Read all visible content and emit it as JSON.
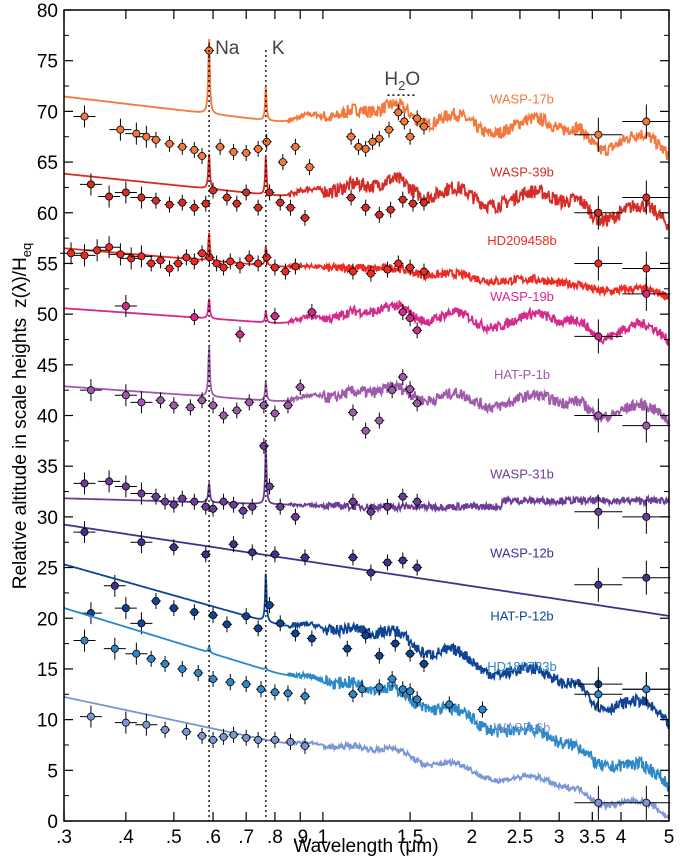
{
  "chart_data": {
    "type": "line",
    "xlabel": "Wavelength",
    "xunit": "(μm)",
    "ylabel": "Relative altitude in scale heights",
    "ylabel_math": "z(λ)/H",
    "ylabel_sub": "eq",
    "xscale": "log",
    "xlim": [
      0.3,
      5.0
    ],
    "ylim": [
      0,
      80
    ],
    "xticks": [
      {
        "v": 0.3,
        "label": ".3"
      },
      {
        "v": 0.4,
        "label": ".4"
      },
      {
        "v": 0.5,
        "label": ".5"
      },
      {
        "v": 0.6,
        "label": ".6"
      },
      {
        "v": 0.7,
        "label": ".7"
      },
      {
        "v": 0.8,
        "label": ".8"
      },
      {
        "v": 0.9,
        "label": ".9"
      },
      {
        "v": 1.0,
        "label": "1"
      },
      {
        "v": 1.5,
        "label": "1.5"
      },
      {
        "v": 2.0,
        "label": "2"
      },
      {
        "v": 2.5,
        "label": "2.5"
      },
      {
        "v": 3.0,
        "label": "3"
      },
      {
        "v": 3.5,
        "label": "3.5"
      },
      {
        "v": 4.0,
        "label": "4"
      },
      {
        "v": 5.0,
        "label": "5"
      }
    ],
    "yticks": [
      0,
      5,
      10,
      15,
      20,
      25,
      30,
      35,
      40,
      45,
      50,
      55,
      60,
      65,
      70,
      75,
      80
    ],
    "features": [
      {
        "label": "Na",
        "x": 0.589
      },
      {
        "label": "K",
        "x": 0.767
      }
    ],
    "water_label": {
      "main": "H",
      "sub": "2",
      "rest": "O",
      "x_from": 1.35,
      "x_to": 1.55,
      "y": 71.6
    },
    "series": [
      {
        "name": "WASP-17b",
        "color": "#f4773c",
        "base": 68.0,
        "slope": -2.5,
        "amp": 3.0,
        "noise": 0.9,
        "cut": false,
        "na": 7.5,
        "k": 3.5,
        "xmax": 5.0,
        "points": [
          [
            0.33,
            69.5
          ],
          [
            0.39,
            68.2
          ],
          [
            0.42,
            67.8
          ],
          [
            0.44,
            67.5
          ],
          [
            0.46,
            67.2
          ],
          [
            0.49,
            66.8
          ],
          [
            0.52,
            66.5
          ],
          [
            0.55,
            66.2
          ],
          [
            0.57,
            65.6
          ],
          [
            0.589,
            76.0
          ],
          [
            0.62,
            66.5
          ],
          [
            0.66,
            66.0
          ],
          [
            0.7,
            65.9
          ],
          [
            0.74,
            66.3
          ],
          [
            0.77,
            67.0
          ],
          [
            0.83,
            65.0
          ],
          [
            0.88,
            66.5
          ],
          [
            0.94,
            64.5
          ],
          [
            1.14,
            67.5
          ],
          [
            1.18,
            66.5
          ],
          [
            1.22,
            66.3
          ],
          [
            1.26,
            67.0
          ],
          [
            1.3,
            67.3
          ],
          [
            1.36,
            68.2
          ],
          [
            1.42,
            69.9
          ],
          [
            1.46,
            69.0
          ],
          [
            1.5,
            67.5
          ],
          [
            1.55,
            69.3
          ],
          [
            1.6,
            68.5
          ],
          [
            3.6,
            67.7
          ],
          [
            4.5,
            69.0
          ]
        ]
      },
      {
        "name": "WASP-39b",
        "color": "#d42d27",
        "base": 60.8,
        "slope": -2.2,
        "amp": 2.8,
        "noise": 1.0,
        "cut": false,
        "na": 3.5,
        "k": 4.0,
        "xmax": 5.0,
        "points": [
          [
            0.34,
            62.8
          ],
          [
            0.37,
            61.6
          ],
          [
            0.4,
            62.0
          ],
          [
            0.43,
            61.5
          ],
          [
            0.46,
            61.2
          ],
          [
            0.49,
            60.8
          ],
          [
            0.52,
            61.0
          ],
          [
            0.55,
            60.5
          ],
          [
            0.58,
            60.9
          ],
          [
            0.6,
            62.2
          ],
          [
            0.64,
            61.5
          ],
          [
            0.67,
            60.9
          ],
          [
            0.7,
            62.0
          ],
          [
            0.74,
            60.5
          ],
          [
            0.78,
            62.0
          ],
          [
            0.82,
            61.0
          ],
          [
            0.86,
            60.5
          ],
          [
            0.92,
            59.5
          ],
          [
            1.14,
            61.5
          ],
          [
            1.22,
            60.5
          ],
          [
            1.3,
            59.8
          ],
          [
            1.37,
            60.3
          ],
          [
            1.45,
            61.3
          ],
          [
            1.52,
            60.9
          ],
          [
            1.6,
            61.0
          ],
          [
            3.6,
            60.0
          ],
          [
            4.5,
            61.5
          ]
        ]
      },
      {
        "name": "HD209458b",
        "color": "#ef2a23",
        "base": 54.0,
        "slope": -1.8,
        "amp": 0.8,
        "noise": 0.6,
        "cut": false,
        "na": 2.8,
        "k": 2.0,
        "xmax": 5.0,
        "points": [
          [
            0.31,
            56.0
          ],
          [
            0.33,
            55.8
          ],
          [
            0.35,
            56.3
          ],
          [
            0.37,
            56.6
          ],
          [
            0.39,
            55.9
          ],
          [
            0.41,
            55.5
          ],
          [
            0.43,
            55.7
          ],
          [
            0.45,
            55.0
          ],
          [
            0.47,
            55.3
          ],
          [
            0.49,
            54.5
          ],
          [
            0.51,
            55.0
          ],
          [
            0.53,
            55.6
          ],
          [
            0.55,
            55.2
          ],
          [
            0.57,
            56.0
          ],
          [
            0.59,
            55.6
          ],
          [
            0.61,
            55.0
          ],
          [
            0.63,
            54.6
          ],
          [
            0.65,
            55.2
          ],
          [
            0.68,
            54.8
          ],
          [
            0.71,
            55.5
          ],
          [
            0.74,
            55.0
          ],
          [
            0.77,
            55.6
          ],
          [
            0.8,
            54.6
          ],
          [
            0.84,
            54.2
          ],
          [
            0.88,
            54.7
          ],
          [
            1.15,
            54.2
          ],
          [
            1.25,
            54.0
          ],
          [
            1.35,
            54.4
          ],
          [
            1.42,
            55.0
          ],
          [
            1.5,
            54.6
          ],
          [
            1.6,
            54.2
          ],
          [
            3.6,
            55.0
          ],
          [
            4.5,
            54.5
          ]
        ]
      },
      {
        "name": "WASP-19b",
        "color": "#d42a8b",
        "base": 48.5,
        "slope": -1.5,
        "amp": 2.5,
        "noise": 0.7,
        "cut": false,
        "na": 2.0,
        "k": 1.2,
        "xmax": 5.0,
        "points": [
          [
            0.4,
            50.8
          ],
          [
            0.55,
            49.7
          ],
          [
            0.68,
            48.0
          ],
          [
            0.8,
            49.8
          ],
          [
            0.95,
            50.2
          ],
          [
            1.45,
            50.2
          ],
          [
            1.5,
            49.6
          ],
          [
            1.55,
            48.4
          ],
          [
            3.6,
            47.8
          ],
          [
            4.5,
            52.0
          ]
        ]
      },
      {
        "name": "HAT-P-1b",
        "color": "#a05aac",
        "base": 40.8,
        "slope": -1.5,
        "amp": 2.2,
        "noise": 0.8,
        "cut": false,
        "na": 5.0,
        "k": 2.0,
        "xmax": 5.0,
        "points": [
          [
            0.34,
            42.5
          ],
          [
            0.4,
            42.0
          ],
          [
            0.43,
            41.3
          ],
          [
            0.47,
            41.5
          ],
          [
            0.5,
            41.0
          ],
          [
            0.54,
            40.8
          ],
          [
            0.57,
            41.5
          ],
          [
            0.6,
            41.0
          ],
          [
            0.63,
            40.0
          ],
          [
            0.67,
            40.5
          ],
          [
            0.71,
            41.3
          ],
          [
            0.76,
            41.0
          ],
          [
            0.8,
            40.2
          ],
          [
            0.85,
            41.0
          ],
          [
            0.9,
            42.8
          ],
          [
            1.15,
            40.3
          ],
          [
            1.22,
            38.5
          ],
          [
            1.3,
            39.5
          ],
          [
            1.38,
            42.5
          ],
          [
            1.45,
            43.8
          ],
          [
            1.5,
            42.6
          ],
          [
            1.55,
            41.2
          ],
          [
            3.6,
            40.0
          ],
          [
            4.5,
            39.0
          ]
        ]
      },
      {
        "name": "WASP-31b",
        "color": "#6c3d96",
        "base": 31.0,
        "slope": -0.6,
        "amp": 0.0,
        "noise": 0.5,
        "cut": true,
        "na": 2.0,
        "k": 6.0,
        "xmax": 5.0,
        "points": [
          [
            0.33,
            33.3
          ],
          [
            0.37,
            33.5
          ],
          [
            0.4,
            33.0
          ],
          [
            0.43,
            32.3
          ],
          [
            0.46,
            32.0
          ],
          [
            0.48,
            31.5
          ],
          [
            0.5,
            31.2
          ],
          [
            0.52,
            31.8
          ],
          [
            0.55,
            31.5
          ],
          [
            0.58,
            31.0
          ],
          [
            0.6,
            30.8
          ],
          [
            0.63,
            31.5
          ],
          [
            0.66,
            31.2
          ],
          [
            0.69,
            30.6
          ],
          [
            0.72,
            31.0
          ],
          [
            0.76,
            37.0
          ],
          [
            0.78,
            33.0
          ],
          [
            0.82,
            31.0
          ],
          [
            0.88,
            30.0
          ],
          [
            1.15,
            31.5
          ],
          [
            1.25,
            30.5
          ],
          [
            1.35,
            31.0
          ],
          [
            1.45,
            32.0
          ],
          [
            1.55,
            31.5
          ],
          [
            3.6,
            30.5
          ],
          [
            4.5,
            30.0
          ]
        ]
      },
      {
        "name": "WASP-12b",
        "color": "#43308a",
        "base": 24.8,
        "slope": -3.2,
        "amp": 0.0,
        "noise": 0.0,
        "cut": false,
        "na": 0,
        "k": 0,
        "xmax": 5.0,
        "points": [
          [
            0.33,
            28.5
          ],
          [
            0.38,
            23.2
          ],
          [
            0.43,
            27.5
          ],
          [
            0.5,
            27.0
          ],
          [
            0.58,
            26.3
          ],
          [
            0.66,
            27.3
          ],
          [
            0.72,
            26.5
          ],
          [
            0.8,
            26.3
          ],
          [
            0.92,
            26.0
          ],
          [
            1.15,
            26.0
          ],
          [
            1.25,
            24.5
          ],
          [
            1.35,
            25.5
          ],
          [
            1.45,
            25.7
          ],
          [
            1.55,
            25.0
          ],
          [
            3.6,
            23.3
          ],
          [
            4.5,
            24.0
          ]
        ]
      },
      {
        "name": "HAT-P-12b",
        "color": "#0e4493",
        "base": 17.0,
        "slope": -6.0,
        "amp": 2.6,
        "noise": 0.8,
        "cut": false,
        "na": 0,
        "k": 5.0,
        "xmax": 5.0,
        "points": [
          [
            0.34,
            20.5
          ],
          [
            0.4,
            21.0
          ],
          [
            0.43,
            19.5
          ],
          [
            0.46,
            21.7
          ],
          [
            0.5,
            21.0
          ],
          [
            0.55,
            20.6
          ],
          [
            0.6,
            20.3
          ],
          [
            0.64,
            19.4
          ],
          [
            0.7,
            20.2
          ],
          [
            0.74,
            19.0
          ],
          [
            0.78,
            21.3
          ],
          [
            0.82,
            19.5
          ],
          [
            0.88,
            18.5
          ],
          [
            0.95,
            18.0
          ],
          [
            1.12,
            17.0
          ],
          [
            1.22,
            18.3
          ],
          [
            1.3,
            16.3
          ],
          [
            1.4,
            17.5
          ],
          [
            1.5,
            16.5
          ],
          [
            1.6,
            15.5
          ],
          [
            3.6,
            13.5
          ],
          [
            4.5,
            13.0
          ]
        ]
      },
      {
        "name": "HD189733b",
        "color": "#2c88c8",
        "base": 12.0,
        "slope": -6.5,
        "amp": 2.0,
        "noise": 0.9,
        "cut": false,
        "na": 0.6,
        "k": 0.3,
        "xmax": 5.0,
        "points": [
          [
            0.33,
            17.8
          ],
          [
            0.38,
            17.0
          ],
          [
            0.42,
            16.5
          ],
          [
            0.45,
            16.0
          ],
          [
            0.48,
            15.5
          ],
          [
            0.52,
            15.0
          ],
          [
            0.56,
            14.6
          ],
          [
            0.6,
            14.0
          ],
          [
            0.65,
            13.7
          ],
          [
            0.7,
            13.5
          ],
          [
            0.75,
            13.0
          ],
          [
            0.8,
            12.7
          ],
          [
            0.85,
            12.6
          ],
          [
            0.92,
            12.3
          ],
          [
            1.15,
            12.5
          ],
          [
            1.2,
            13.0
          ],
          [
            1.3,
            13.2
          ],
          [
            1.38,
            14.0
          ],
          [
            1.45,
            13.0
          ],
          [
            1.5,
            12.8
          ],
          [
            1.55,
            12.0
          ],
          [
            1.8,
            11.5
          ],
          [
            2.1,
            11.0
          ],
          [
            3.6,
            12.5
          ],
          [
            4.5,
            13.0
          ]
        ]
      },
      {
        "name": "WASP-6b",
        "color": "#7a97d4",
        "base": 6.0,
        "slope": -4.5,
        "amp": 1.8,
        "noise": 0.4,
        "cut": false,
        "na": 0,
        "k": 0,
        "xmax": 5.0,
        "points": [
          [
            0.34,
            10.3
          ],
          [
            0.4,
            9.7
          ],
          [
            0.44,
            9.5
          ],
          [
            0.48,
            9.0
          ],
          [
            0.53,
            8.8
          ],
          [
            0.57,
            8.4
          ],
          [
            0.6,
            8.0
          ],
          [
            0.63,
            8.3
          ],
          [
            0.66,
            8.5
          ],
          [
            0.7,
            8.2
          ],
          [
            0.74,
            8.0
          ],
          [
            0.8,
            8.0
          ],
          [
            0.86,
            7.8
          ],
          [
            0.92,
            7.4
          ],
          [
            3.6,
            1.8
          ],
          [
            4.5,
            1.8
          ]
        ]
      }
    ]
  }
}
